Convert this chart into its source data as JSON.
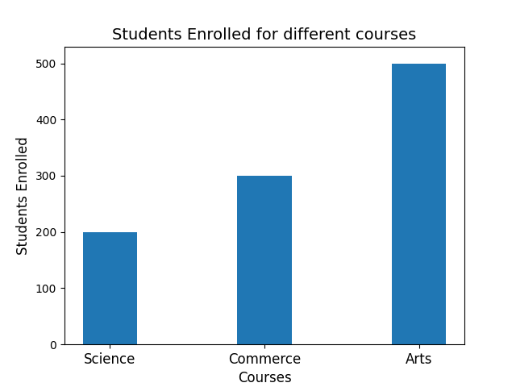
{
  "categories": [
    "Science",
    "Commerce",
    "Arts"
  ],
  "values": [
    200,
    300,
    500
  ],
  "bar_color": "#2077b4",
  "bar_width": 0.35,
  "title": "Students Enrolled for different courses",
  "xlabel": "Courses",
  "ylabel": "Students Enrolled",
  "ylim": [
    0,
    530
  ],
  "title_fontsize": 14,
  "label_fontsize": 12,
  "figsize": [
    6.4,
    4.8
  ],
  "dpi": 100
}
